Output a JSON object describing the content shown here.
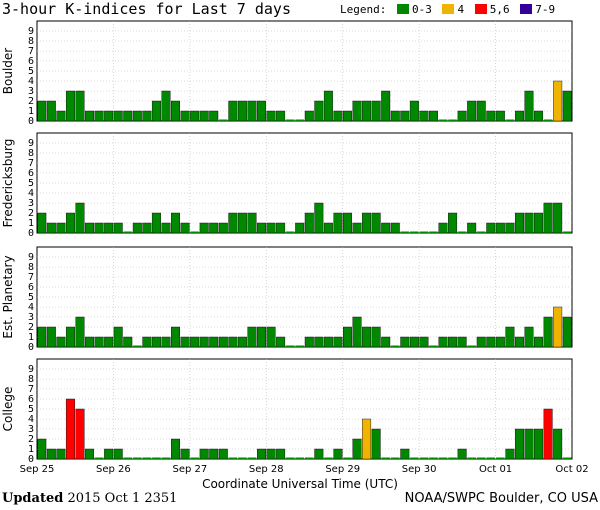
{
  "header": {
    "title": "3-hour K-indices for Last 7 days",
    "legend_label": "Legend:",
    "legend": [
      {
        "label": "0-3",
        "color": "#008800"
      },
      {
        "label": "4",
        "color": "#f0b400"
      },
      {
        "label": "5,6",
        "color": "#ff0000"
      },
      {
        "label": "7-9",
        "color": "#330099"
      }
    ]
  },
  "footer": {
    "updated_label": "Updated",
    "updated_value": "2015 Oct  1 2351",
    "credit": "NOAA/SWPC Boulder, CO USA"
  },
  "chart_data": {
    "type": "bar",
    "xlabel": "Coordinate Universal Time (UTC)",
    "x_tick_labels": [
      "Sep 25",
      "Sep 26",
      "Sep 27",
      "Sep 28",
      "Sep 29",
      "Sep 30",
      "Oct 01",
      "Oct 02"
    ],
    "ylim": [
      0,
      9
    ],
    "y_ticks": [
      0,
      1,
      2,
      3,
      4,
      5,
      6,
      7,
      8,
      9
    ],
    "bins_per_day": 8,
    "colors": {
      "low": "#008800",
      "mid": "#f0b400",
      "high": "#ff0000",
      "severe": "#330099"
    },
    "panels": [
      {
        "name": "Boulder",
        "values": [
          2,
          2,
          1,
          3,
          3,
          1,
          1,
          1,
          1,
          1,
          1,
          1,
          2,
          3,
          2,
          1,
          1,
          1,
          1,
          0,
          2,
          2,
          2,
          2,
          1,
          1,
          0,
          0,
          1,
          2,
          3,
          1,
          1,
          2,
          2,
          2,
          3,
          1,
          1,
          2,
          1,
          1,
          0,
          0,
          1,
          2,
          2,
          1,
          1,
          0,
          1,
          3,
          1,
          0,
          4,
          3
        ]
      },
      {
        "name": "Fredericksburg",
        "values": [
          2,
          1,
          1,
          2,
          3,
          1,
          1,
          1,
          1,
          0,
          1,
          1,
          2,
          1,
          2,
          1,
          0,
          1,
          1,
          1,
          2,
          2,
          2,
          1,
          1,
          1,
          0,
          1,
          2,
          3,
          1,
          2,
          2,
          1,
          2,
          2,
          1,
          1,
          0,
          0,
          0,
          0,
          1,
          2,
          0,
          1,
          0,
          1,
          1,
          1,
          2,
          2,
          2,
          3,
          3,
          0
        ]
      },
      {
        "name": "Est. Planetary",
        "values": [
          2,
          2,
          1,
          2,
          3,
          1,
          1,
          1,
          2,
          1,
          0,
          1,
          1,
          1,
          2,
          1,
          1,
          1,
          1,
          1,
          1,
          1,
          2,
          2,
          2,
          1,
          0,
          0,
          1,
          1,
          1,
          1,
          2,
          3,
          2,
          2,
          1,
          0,
          1,
          1,
          1,
          0,
          1,
          1,
          1,
          0,
          1,
          1,
          1,
          2,
          1,
          2,
          1,
          3,
          4,
          3
        ]
      },
      {
        "name": "College",
        "values": [
          2,
          1,
          1,
          6,
          5,
          1,
          0,
          1,
          1,
          0,
          0,
          0,
          0,
          0,
          2,
          1,
          0,
          1,
          1,
          1,
          0,
          0,
          0,
          1,
          1,
          1,
          0,
          0,
          0,
          1,
          0,
          1,
          0,
          2,
          4,
          3,
          0,
          0,
          1,
          0,
          0,
          0,
          0,
          0,
          1,
          0,
          0,
          0,
          0,
          1,
          3,
          3,
          3,
          5,
          3,
          0
        ]
      }
    ]
  }
}
